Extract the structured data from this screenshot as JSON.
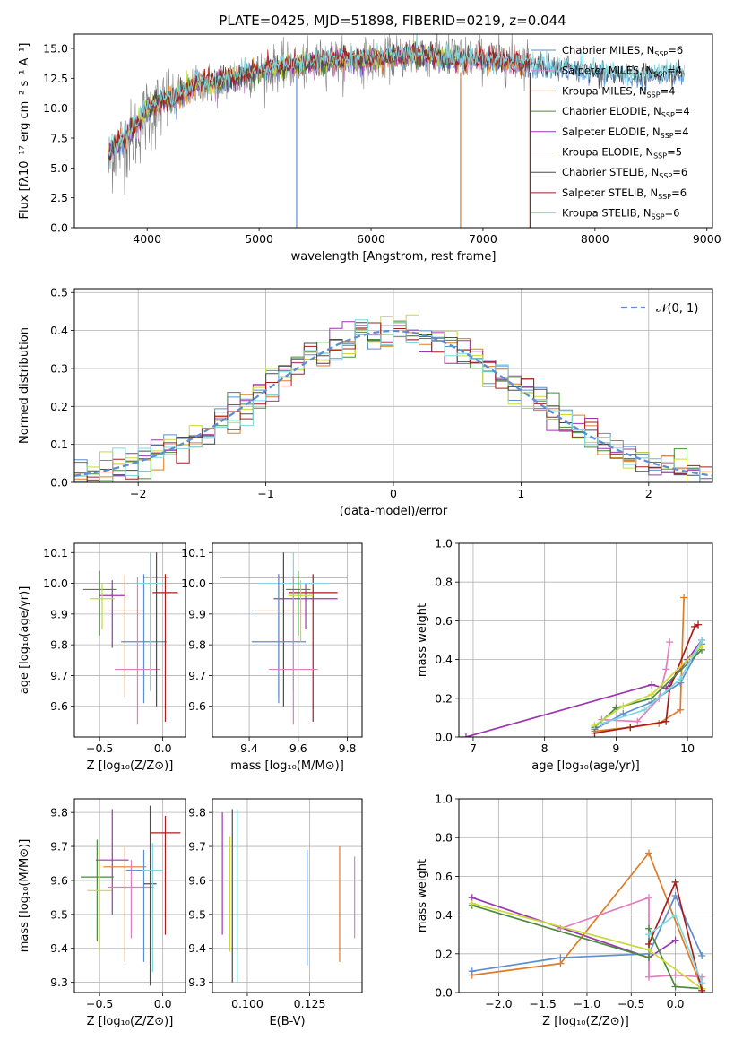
{
  "figure_title": "PLATE=0425, MJD=51898, FIBERID=0219, z=0.044",
  "colors": {
    "chabrier_miles": "#5b8fd1",
    "salpeter_miles": "#c98fd0",
    "kroupa_miles": "#e07b25",
    "chabrier_elodie": "#4a8a3c",
    "salpeter_elodie": "#9b37b0",
    "kroupa_elodie": "#c9d93a",
    "chabrier_stelib": "#4d4d4d",
    "salpeter_stelib": "#a81c1c",
    "kroupa_stelib": "#7fd8df",
    "pink": "#e27ebd",
    "normal_curve": "#5b8fd1",
    "grid": "#b0b0b0"
  },
  "chart_data": [
    {
      "id": "spectrum",
      "type": "line",
      "xlabel": "wavelength [Angstrom, rest frame]",
      "ylabel": "Flux [fλ10⁻¹⁷ erg cm⁻² s⁻¹ A⁻¹]",
      "xlim": [
        3350,
        9050
      ],
      "ylim": [
        0,
        16.2
      ],
      "xticks": [
        4000,
        5000,
        6000,
        7000,
        8000,
        9000
      ],
      "yticks": [
        0.0,
        2.5,
        5.0,
        7.5,
        10.0,
        12.5,
        15.0
      ],
      "ytick_labels": [
        "0.0",
        "2.5",
        "5.0",
        "7.5",
        "10.0",
        "12.5",
        "15.0"
      ],
      "grid": false,
      "legend_position": "right",
      "legend": [
        {
          "name": "Chabrier MILES",
          "nssp": "6",
          "color_key": "chabrier_miles"
        },
        {
          "name": "Salpeter MILES",
          "nssp": "4",
          "color_key": "salpeter_miles"
        },
        {
          "name": "Kroupa MILES",
          "nssp": "4",
          "color_key": "kroupa_miles"
        },
        {
          "name": "Chabrier ELODIE",
          "nssp": "4",
          "color_key": "chabrier_elodie"
        },
        {
          "name": "Salpeter ELODIE",
          "nssp": "4",
          "color_key": "salpeter_elodie"
        },
        {
          "name": "Kroupa ELODIE",
          "nssp": "5",
          "color_key": "kroupa_elodie"
        },
        {
          "name": "Chabrier STELIB",
          "nssp": "6",
          "color_key": "chabrier_stelib"
        },
        {
          "name": "Salpeter STELIB",
          "nssp": "6",
          "color_key": "salpeter_stelib"
        },
        {
          "name": "Kroupa STELIB",
          "nssp": "6",
          "color_key": "kroupa_stelib"
        }
      ],
      "data_color": "#808080",
      "data_x": [
        3650,
        3700,
        3800,
        3900,
        4000,
        4100,
        4200,
        4300,
        4400,
        4500,
        4600,
        4700,
        4800,
        4900,
        5000,
        5200,
        5400,
        5600,
        5800,
        6000,
        6200,
        6400,
        6600,
        6800,
        7000,
        7200,
        7400
      ],
      "data_y": [
        5.0,
        6.5,
        7.0,
        8.0,
        9.5,
        10.0,
        10.5,
        11.0,
        11.5,
        12.0,
        12.0,
        12.3,
        12.5,
        12.8,
        13.0,
        13.5,
        13.5,
        14.0,
        14.0,
        14.0,
        14.3,
        14.5,
        14.5,
        14.3,
        14.2,
        14.0,
        14.0
      ],
      "model_x": [
        3650,
        3700,
        3800,
        3900,
        4000,
        4100,
        4200,
        4300,
        4400,
        4500,
        4600,
        4700,
        4800,
        4900,
        5000,
        5200,
        5400,
        5600,
        5800,
        6000,
        6200,
        6400,
        6600,
        6800,
        7000,
        7200,
        7400,
        7600,
        7800,
        8000,
        8200,
        8400,
        8600,
        8800
      ],
      "model_y": [
        6.0,
        6.8,
        7.5,
        8.5,
        10.0,
        10.5,
        10.8,
        11.2,
        11.8,
        12.2,
        12.0,
        12.4,
        12.6,
        12.9,
        13.0,
        13.6,
        13.6,
        14.0,
        14.1,
        14.1,
        14.3,
        14.5,
        14.3,
        14.0,
        14.0,
        13.8,
        13.6,
        13.4,
        13.3,
        13.0,
        12.8,
        12.6,
        12.8,
        12.9
      ]
    },
    {
      "id": "residuals",
      "type": "step",
      "xlabel": "(data-model)/error",
      "ylabel": "Normed distribution",
      "xlim": [
        -2.5,
        2.5
      ],
      "ylim": [
        0,
        0.51
      ],
      "xticks": [
        -2,
        -1,
        0,
        1,
        2
      ],
      "xtick_labels": [
        "−2",
        "−1",
        "0",
        "1",
        "2"
      ],
      "yticks": [
        0.0,
        0.1,
        0.2,
        0.3,
        0.4,
        0.5
      ],
      "ytick_labels": [
        "0.0",
        "0.1",
        "0.2",
        "0.3",
        "0.4",
        "0.5"
      ],
      "grid": true,
      "legend_position": "top-right",
      "legend_label": "𝒩(0, 1)",
      "bin_width": 0.1
    },
    {
      "id": "age_vs_Z",
      "type": "errorbar",
      "xlabel": "Z [log₁₀(Z/Z⊙)]",
      "ylabel": "age  [log₁₀(age/yr)]",
      "xlim": [
        -0.7,
        0.18
      ],
      "ylim": [
        9.5,
        10.13
      ],
      "xticks": [
        -0.5,
        0.0
      ],
      "xtick_labels": [
        "−0.5",
        "0.0"
      ],
      "yticks": [
        9.6,
        9.7,
        9.8,
        9.9,
        10.0,
        10.1
      ],
      "ytick_labels": [
        "9.6",
        "9.7",
        "9.8",
        "9.9",
        "10.0",
        "10.1"
      ],
      "grid": true,
      "points": [
        {
          "x": -0.5,
          "y": 9.98,
          "xerr": 0.13,
          "yerr": [
            0.15,
            0.06
          ],
          "color_key": "chabrier_elodie"
        },
        {
          "x": -0.4,
          "y": 9.96,
          "xerr": 0.1,
          "yerr": [
            0.17,
            0.05
          ],
          "color_key": "salpeter_elodie"
        },
        {
          "x": -0.3,
          "y": 9.91,
          "xerr": 0.15,
          "yerr": [
            0.28,
            0.12
          ],
          "color_key": "kroupa_miles"
        },
        {
          "x": -0.15,
          "y": 9.81,
          "xerr": 0.18,
          "yerr": [
            0.2,
            0.22
          ],
          "color_key": "chabrier_miles"
        },
        {
          "x": -0.2,
          "y": 9.72,
          "xerr": 0.18,
          "yerr": [
            0.18,
            0.3
          ],
          "color_key": "pink"
        },
        {
          "x": -0.05,
          "y": 10.02,
          "xerr": 0.1,
          "yerr": [
            0.42,
            0.08
          ],
          "color_key": "chabrier_stelib"
        },
        {
          "x": 0.02,
          "y": 9.97,
          "xerr": 0.1,
          "yerr": [
            0.42,
            0.06
          ],
          "color_key": "salpeter_stelib"
        },
        {
          "x": -0.1,
          "y": 10.0,
          "xerr": 0.1,
          "yerr": [
            0.35,
            0.1
          ],
          "color_key": "kroupa_stelib"
        },
        {
          "x": -0.48,
          "y": 9.95,
          "xerr": 0.1,
          "yerr": [
            0.1,
            0.05
          ],
          "color_key": "kroupa_elodie"
        }
      ]
    },
    {
      "id": "age_vs_mass",
      "type": "errorbar",
      "xlabel": "mass [log₁₀(M/M⊙)]",
      "ylabel": "",
      "xlim": [
        9.25,
        9.86
      ],
      "ylim": [
        9.5,
        10.13
      ],
      "xticks": [
        9.4,
        9.6,
        9.8
      ],
      "xtick_labels": [
        "9.4",
        "9.6",
        "9.8"
      ],
      "yticks": [
        9.6,
        9.7,
        9.8,
        9.9,
        10.0,
        10.1
      ],
      "ytick_labels": [
        "9.6",
        "9.7",
        "9.8",
        "9.9",
        "10.0",
        "10.1"
      ],
      "grid": true,
      "points": [
        {
          "x": 9.54,
          "y": 10.02,
          "xerr": 0.26,
          "yerr": [
            0.42,
            0.08
          ],
          "color_key": "chabrier_stelib"
        },
        {
          "x": 9.66,
          "y": 9.97,
          "xerr": 0.1,
          "yerr": [
            0.42,
            0.06
          ],
          "color_key": "salpeter_stelib"
        },
        {
          "x": 9.63,
          "y": 9.95,
          "xerr": 0.13,
          "yerr": [
            0.1,
            0.05
          ],
          "color_key": "salpeter_elodie"
        },
        {
          "x": 9.58,
          "y": 10.0,
          "xerr": 0.14,
          "yerr": [
            0.35,
            0.1
          ],
          "color_key": "kroupa_stelib"
        },
        {
          "x": 9.52,
          "y": 9.91,
          "xerr": 0.11,
          "yerr": [
            0.28,
            0.12
          ],
          "color_key": "kroupa_miles"
        },
        {
          "x": 9.52,
          "y": 9.81,
          "xerr": 0.11,
          "yerr": [
            0.2,
            0.22
          ],
          "color_key": "chabrier_miles"
        },
        {
          "x": 9.58,
          "y": 9.72,
          "xerr": 0.1,
          "yerr": [
            0.18,
            0.3
          ],
          "color_key": "pink"
        },
        {
          "x": 9.6,
          "y": 9.98,
          "xerr": 0.05,
          "yerr": [
            0.15,
            0.06
          ],
          "color_key": "chabrier_elodie"
        },
        {
          "x": 9.61,
          "y": 9.96,
          "xerr": 0.05,
          "yerr": [
            0.15,
            0.05
          ],
          "color_key": "kroupa_elodie"
        }
      ]
    },
    {
      "id": "massweight_vs_age",
      "type": "line",
      "xlabel": "age  [log₁₀(age/yr)]",
      "ylabel": "mass weight",
      "xlim": [
        6.8,
        10.35
      ],
      "ylim": [
        0,
        1.0
      ],
      "xticks": [
        7,
        8,
        9,
        10
      ],
      "xtick_labels": [
        "7",
        "8",
        "9",
        "10"
      ],
      "yticks": [
        0.0,
        0.2,
        0.4,
        0.6,
        0.8,
        1.0
      ],
      "ytick_labels": [
        "0.0",
        "0.2",
        "0.4",
        "0.6",
        "0.8",
        "1.0"
      ],
      "grid": true,
      "series": [
        {
          "color_key": "salpeter_elodie",
          "x": [
            6.9,
            9.5,
            9.7,
            10.0,
            10.2
          ],
          "y": [
            0.0,
            0.27,
            0.25,
            0.4,
            0.5
          ]
        },
        {
          "color_key": "kroupa_miles",
          "x": [
            8.7,
            9.2,
            9.6,
            9.9,
            9.95
          ],
          "y": [
            0.03,
            0.05,
            0.07,
            0.14,
            0.72
          ]
        },
        {
          "color_key": "pink",
          "x": [
            8.8,
            9.3,
            9.6,
            9.7,
            9.75
          ],
          "y": [
            0.09,
            0.08,
            0.2,
            0.35,
            0.49
          ]
        },
        {
          "color_key": "salpeter_stelib",
          "x": [
            8.7,
            9.2,
            9.7,
            9.75,
            10.1,
            10.15
          ],
          "y": [
            0.02,
            0.05,
            0.08,
            0.25,
            0.57,
            0.58
          ]
        },
        {
          "color_key": "chabrier_miles",
          "x": [
            8.7,
            9.1,
            9.5,
            9.9,
            10.2
          ],
          "y": [
            0.04,
            0.12,
            0.18,
            0.28,
            0.48
          ]
        },
        {
          "color_key": "chabrier_elodie",
          "x": [
            8.7,
            9.0,
            9.5,
            10.2
          ],
          "y": [
            0.05,
            0.15,
            0.2,
            0.45
          ]
        },
        {
          "color_key": "kroupa_elodie",
          "x": [
            8.7,
            9.1,
            9.5,
            10.2
          ],
          "y": [
            0.06,
            0.16,
            0.22,
            0.47
          ]
        },
        {
          "color_key": "kroupa_stelib",
          "x": [
            8.8,
            9.4,
            9.9,
            10.2
          ],
          "y": [
            0.07,
            0.14,
            0.3,
            0.5
          ]
        }
      ]
    },
    {
      "id": "mass_vs_Z",
      "type": "errorbar",
      "xlabel": "Z [log₁₀(Z/Z⊙)]",
      "ylabel": "mass [log₁₀(M/M⊙)]",
      "xlim": [
        -0.7,
        0.18
      ],
      "ylim": [
        9.27,
        9.84
      ],
      "xticks": [
        -0.5,
        0.0
      ],
      "xtick_labels": [
        "−0.5",
        "0.0"
      ],
      "yticks": [
        9.3,
        9.4,
        9.5,
        9.6,
        9.7,
        9.8
      ],
      "ytick_labels": [
        "9.3",
        "9.4",
        "9.5",
        "9.6",
        "9.7",
        "9.8"
      ],
      "grid": true,
      "points": [
        {
          "x": -0.52,
          "y": 9.61,
          "xerr": 0.13,
          "yerr": [
            0.19,
            0.11
          ],
          "color_key": "chabrier_elodie"
        },
        {
          "x": -0.5,
          "y": 9.57,
          "xerr": 0.1,
          "yerr": [
            0.18,
            0.12
          ],
          "color_key": "kroupa_elodie"
        },
        {
          "x": -0.4,
          "y": 9.66,
          "xerr": 0.13,
          "yerr": [
            0.16,
            0.15
          ],
          "color_key": "salpeter_elodie"
        },
        {
          "x": -0.3,
          "y": 9.64,
          "xerr": 0.17,
          "yerr": [
            0.28,
            0.06
          ],
          "color_key": "kroupa_miles"
        },
        {
          "x": -0.25,
          "y": 9.58,
          "xerr": 0.18,
          "yerr": [
            0.15,
            0.08
          ],
          "color_key": "pink"
        },
        {
          "x": -0.15,
          "y": 9.63,
          "xerr": 0.14,
          "yerr": [
            0.27,
            0.06
          ],
          "color_key": "chabrier_miles"
        },
        {
          "x": -0.1,
          "y": 9.59,
          "xerr": 0.05,
          "yerr": [
            0.3,
            0.23
          ],
          "color_key": "chabrier_stelib"
        },
        {
          "x": 0.02,
          "y": 9.74,
          "xerr": 0.12,
          "yerr": [
            0.3,
            0.05
          ],
          "color_key": "salpeter_stelib"
        },
        {
          "x": -0.08,
          "y": 9.63,
          "xerr": 0.08,
          "yerr": [
            0.3,
            0.08
          ],
          "color_key": "kroupa_stelib"
        }
      ]
    },
    {
      "id": "mass_vs_ebv",
      "type": "errorbar",
      "xlabel": "E(B-V)",
      "ylabel": "",
      "xlim": [
        0.086,
        0.146
      ],
      "ylim": [
        9.27,
        9.84
      ],
      "xticks": [
        0.1,
        0.125
      ],
      "xtick_labels": [
        "0.100",
        "0.125"
      ],
      "yticks": [
        9.3,
        9.4,
        9.5,
        9.6,
        9.7,
        9.8
      ],
      "ytick_labels": [
        "9.3",
        "9.4",
        "9.5",
        "9.6",
        "9.7",
        "9.8"
      ],
      "grid": true,
      "points": [
        {
          "x": 0.09,
          "y": 9.63,
          "xerr": 0,
          "yerr": [
            0.19,
            0.17
          ],
          "color_key": "salpeter_elodie"
        },
        {
          "x": 0.093,
          "y": 9.57,
          "xerr": 0,
          "yerr": [
            0.18,
            0.16
          ],
          "color_key": "kroupa_elodie"
        },
        {
          "x": 0.094,
          "y": 9.62,
          "xerr": 0,
          "yerr": [
            0.32,
            0.19
          ],
          "color_key": "chabrier_stelib"
        },
        {
          "x": 0.096,
          "y": 9.55,
          "xerr": 0,
          "yerr": [
            0.25,
            0.26
          ],
          "color_key": "kroupa_stelib"
        },
        {
          "x": 0.124,
          "y": 9.52,
          "xerr": 0,
          "yerr": [
            0.17,
            0.17
          ],
          "color_key": "chabrier_miles"
        },
        {
          "x": 0.137,
          "y": 9.53,
          "xerr": 0,
          "yerr": [
            0.17,
            0.17
          ],
          "color_key": "kroupa_miles"
        },
        {
          "x": 0.143,
          "y": 9.55,
          "xerr": 0,
          "yerr": [
            0.12,
            0.12
          ],
          "color_key": "pink"
        }
      ]
    },
    {
      "id": "massweight_vs_Z",
      "type": "line",
      "xlabel": "Z [log₁₀(Z/Z⊙)]",
      "ylabel": "mass weight",
      "xlim": [
        -2.45,
        0.42
      ],
      "ylim": [
        0,
        1.0
      ],
      "xticks": [
        -2.0,
        -1.5,
        -1.0,
        -0.5,
        0.0
      ],
      "xtick_labels": [
        "−2.0",
        "−1.5",
        "−1.0",
        "−0.5",
        "0.0"
      ],
      "yticks": [
        0.0,
        0.2,
        0.4,
        0.6,
        0.8,
        1.0
      ],
      "ytick_labels": [
        "0.0",
        "0.2",
        "0.4",
        "0.6",
        "0.8",
        "1.0"
      ],
      "grid": true,
      "series": [
        {
          "color_key": "salpeter_elodie",
          "x": [
            -2.3,
            -0.3,
            0.0
          ],
          "y": [
            0.49,
            0.18,
            0.27
          ]
        },
        {
          "color_key": "kroupa_miles",
          "x": [
            -2.3,
            -1.3,
            -0.3,
            0.3
          ],
          "y": [
            0.09,
            0.15,
            0.72,
            0.02
          ]
        },
        {
          "color_key": "chabrier_miles",
          "x": [
            -2.3,
            -1.3,
            -0.3,
            0.0,
            0.3
          ],
          "y": [
            0.11,
            0.18,
            0.2,
            0.5,
            0.19
          ]
        },
        {
          "color_key": "pink",
          "x": [
            -1.3,
            -0.3,
            -0.3,
            0.0,
            0.3
          ],
          "y": [
            0.33,
            0.49,
            0.08,
            0.09,
            0.08
          ]
        },
        {
          "color_key": "chabrier_elodie",
          "x": [
            -2.3,
            -0.3,
            -0.3,
            0.0,
            0.3
          ],
          "y": [
            0.45,
            0.18,
            0.33,
            0.03,
            0.02
          ]
        },
        {
          "color_key": "kroupa_elodie",
          "x": [
            -2.3,
            -0.3,
            0.3
          ],
          "y": [
            0.46,
            0.22,
            0.02
          ]
        },
        {
          "color_key": "salpeter_stelib",
          "x": [
            -0.3,
            0.0,
            0.3
          ],
          "y": [
            0.25,
            0.57,
            0.01
          ]
        },
        {
          "color_key": "kroupa_stelib",
          "x": [
            -0.3,
            0.0,
            0.3
          ],
          "y": [
            0.3,
            0.4,
            0.05
          ]
        }
      ]
    }
  ]
}
